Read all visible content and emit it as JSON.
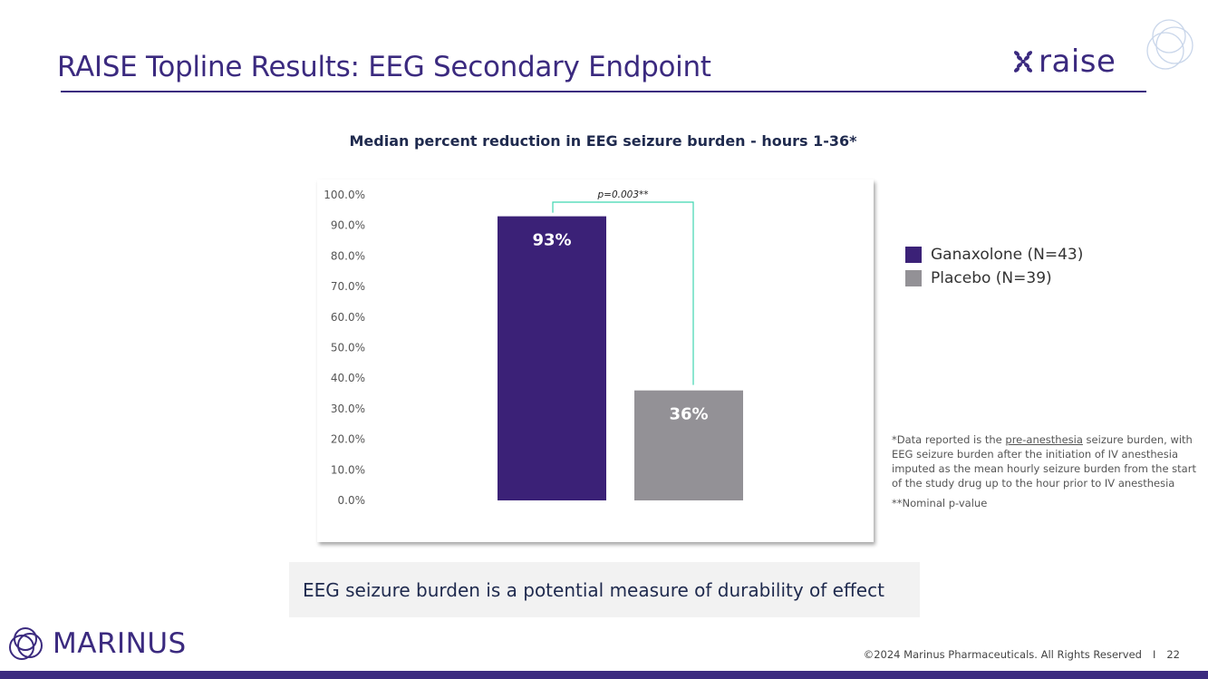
{
  "slide": {
    "title": "RAISE Topline Results: EEG Secondary Endpoint",
    "brand_logo_text": "raise",
    "callout": "EEG seizure burden is a potential measure of durability of effect",
    "company_logo_text": "MARINUS",
    "copyright": "©2024 Marinus Pharmaceuticals. All Rights Reserved",
    "separator": "I",
    "page_number": "22",
    "accent_color": "#3b2a7f"
  },
  "legend": {
    "items": [
      {
        "label": "Ganaxolone (N=43)",
        "color": "#3b2177"
      },
      {
        "label": "Placebo (N=39)",
        "color": "#939196"
      }
    ]
  },
  "footnotes": {
    "note1_prefix": "*Data reported is the ",
    "note1_underlined": "pre-anesthesia",
    "note1_suffix": " seizure burden, with EEG seizure burden after the initiation of IV anesthesia imputed as the mean hourly seizure burden from the start of the study drug up to the hour prior to IV anesthesia",
    "note2": "**Nominal p-value"
  },
  "chart_data": {
    "type": "bar",
    "title": "Median percent reduction in EEG seizure burden - hours 1-36*",
    "categories": [
      "Ganaxolone (N=43)",
      "Placebo (N=39)"
    ],
    "values": [
      93,
      36
    ],
    "data_labels": [
      "93%",
      "36%"
    ],
    "colors": [
      "#3b2177",
      "#939196"
    ],
    "ylim": [
      0,
      100
    ],
    "yticks": [
      0,
      10,
      20,
      30,
      40,
      50,
      60,
      70,
      80,
      90,
      100
    ],
    "ytick_labels": [
      "0.0%",
      "10.0%",
      "20.0%",
      "30.0%",
      "40.0%",
      "50.0%",
      "60.0%",
      "70.0%",
      "80.0%",
      "90.0%",
      "100.0%"
    ],
    "xlabel": "",
    "ylabel": "",
    "grid": false,
    "annotation": "p=0.003**",
    "annotation_color": "#3fd6b0"
  }
}
